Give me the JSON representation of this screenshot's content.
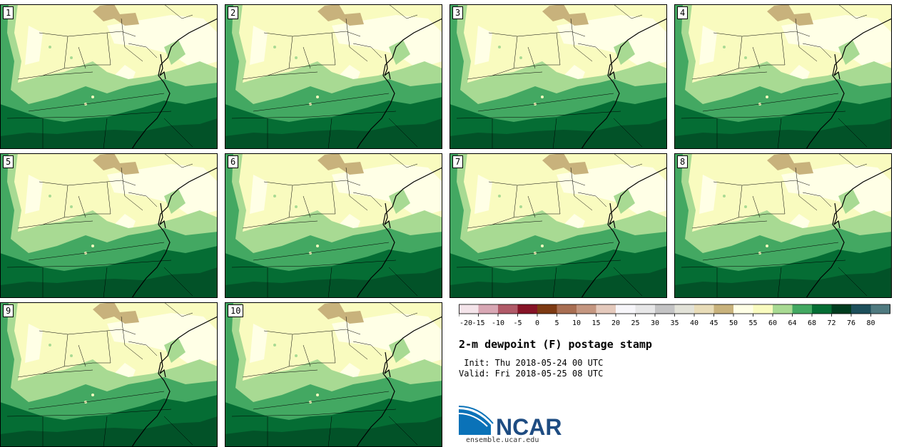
{
  "title": "2-m dewpoint (F) postage stamp",
  "init_label": "Init:",
  "init_time": "Thu 2018-05-24 00 UTC",
  "valid_label": "Valid:",
  "valid_time": "Fri 2018-05-25 08 UTC",
  "logo_text": "NCAR",
  "url": "ensemble.ucar.edu",
  "members": [
    "1",
    "2",
    "3",
    "4",
    "5",
    "6",
    "7",
    "8",
    "9",
    "10"
  ],
  "colorbar": {
    "tick_labels": [
      "-20",
      "-15",
      "-10",
      "-5",
      "0",
      "5",
      "10",
      "15",
      "20",
      "25",
      "30",
      "35",
      "40",
      "45",
      "50",
      "55",
      "60",
      "64",
      "68",
      "72",
      "76",
      "80"
    ],
    "colors": [
      "#f4e4ea",
      "#d8a7b4",
      "#b05a68",
      "#861427",
      "#7d3a13",
      "#a86e52",
      "#c49680",
      "#e4c9bc",
      "#f7f6fa",
      "#e7e7e8",
      "#c3c3c4",
      "#e2e2d8",
      "#e8dcb8",
      "#c8b27c",
      "#ffffe6",
      "#f9fbbf",
      "#a8da93",
      "#43a862",
      "#056d34",
      "#003c1f",
      "#1d4f5b",
      "#4f7a80"
    ]
  },
  "colors": {
    "c45": "#c8b27c",
    "c50": "#ffffe6",
    "c55": "#f9fbbf",
    "c60": "#a8da93",
    "c64": "#43a862",
    "c68": "#056d34",
    "c72": "#003c1f",
    "ncar_blue": "#0a72b8",
    "ncar_text": "#1e4c82"
  }
}
